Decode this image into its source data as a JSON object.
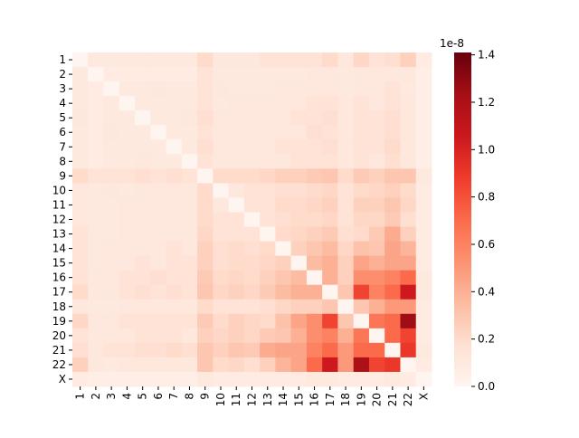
{
  "chart_data": {
    "type": "heatmap",
    "colormap": "Reds",
    "x_categories": [
      "1",
      "2",
      "3",
      "4",
      "5",
      "6",
      "7",
      "8",
      "9",
      "10",
      "11",
      "12",
      "13",
      "14",
      "15",
      "16",
      "17",
      "18",
      "19",
      "20",
      "21",
      "22",
      "X"
    ],
    "y_categories": [
      "1",
      "2",
      "3",
      "4",
      "5",
      "6",
      "7",
      "8",
      "9",
      "10",
      "11",
      "12",
      "13",
      "14",
      "15",
      "16",
      "17",
      "18",
      "19",
      "20",
      "21",
      "22",
      "X"
    ],
    "values": [
      [
        0,
        0.1,
        0.1,
        0.1,
        0.1,
        0.1,
        0.1,
        0.1,
        0.2,
        0.12,
        0.12,
        0.12,
        0.15,
        0.15,
        0.15,
        0.15,
        0.2,
        0.12,
        0.22,
        0.15,
        0.18,
        0.25,
        0.08
      ],
      [
        0.1,
        0,
        0.08,
        0.08,
        0.08,
        0.08,
        0.08,
        0.08,
        0.15,
        0.1,
        0.1,
        0.1,
        0.1,
        0.1,
        0.1,
        0.12,
        0.12,
        0.1,
        0.12,
        0.12,
        0.12,
        0.12,
        0.06
      ],
      [
        0.1,
        0.08,
        0,
        0.1,
        0.1,
        0.12,
        0.1,
        0.1,
        0.15,
        0.12,
        0.1,
        0.1,
        0.1,
        0.12,
        0.12,
        0.12,
        0.12,
        0.1,
        0.12,
        0.12,
        0.15,
        0.1,
        0.06
      ],
      [
        0.1,
        0.08,
        0.1,
        0,
        0.1,
        0.1,
        0.1,
        0.1,
        0.15,
        0.1,
        0.12,
        0.12,
        0.12,
        0.12,
        0.12,
        0.15,
        0.15,
        0.12,
        0.15,
        0.12,
        0.15,
        0.12,
        0.06
      ],
      [
        0.12,
        0.08,
        0.1,
        0.1,
        0,
        0.1,
        0.1,
        0.12,
        0.18,
        0.12,
        0.12,
        0.12,
        0.12,
        0.12,
        0.15,
        0.15,
        0.18,
        0.12,
        0.15,
        0.15,
        0.18,
        0.12,
        0.06
      ],
      [
        0.1,
        0.08,
        0.12,
        0.1,
        0.1,
        0,
        0.1,
        0.1,
        0.15,
        0.12,
        0.12,
        0.12,
        0.12,
        0.12,
        0.12,
        0.18,
        0.15,
        0.12,
        0.15,
        0.15,
        0.18,
        0.12,
        0.06
      ],
      [
        0.1,
        0.08,
        0.1,
        0.1,
        0.1,
        0.1,
        0,
        0.1,
        0.18,
        0.12,
        0.12,
        0.12,
        0.12,
        0.15,
        0.15,
        0.15,
        0.18,
        0.12,
        0.15,
        0.15,
        0.2,
        0.12,
        0.06
      ],
      [
        0.1,
        0.08,
        0.1,
        0.1,
        0.12,
        0.1,
        0.1,
        0,
        0.15,
        0.12,
        0.12,
        0.12,
        0.12,
        0.12,
        0.15,
        0.15,
        0.15,
        0.12,
        0.15,
        0.12,
        0.18,
        0.12,
        0.06
      ],
      [
        0.2,
        0.15,
        0.15,
        0.15,
        0.18,
        0.15,
        0.18,
        0.15,
        0,
        0.2,
        0.2,
        0.2,
        0.22,
        0.25,
        0.25,
        0.28,
        0.3,
        0.2,
        0.28,
        0.25,
        0.3,
        0.3,
        0.1
      ],
      [
        0.12,
        0.1,
        0.12,
        0.1,
        0.12,
        0.12,
        0.12,
        0.12,
        0.2,
        0,
        0.12,
        0.15,
        0.15,
        0.18,
        0.18,
        0.2,
        0.22,
        0.15,
        0.2,
        0.22,
        0.25,
        0.2,
        0.08
      ],
      [
        0.12,
        0.1,
        0.1,
        0.12,
        0.12,
        0.12,
        0.12,
        0.12,
        0.2,
        0.12,
        0,
        0.15,
        0.15,
        0.2,
        0.2,
        0.22,
        0.25,
        0.15,
        0.25,
        0.25,
        0.3,
        0.22,
        0.08
      ],
      [
        0.12,
        0.1,
        0.1,
        0.12,
        0.12,
        0.12,
        0.12,
        0.12,
        0.2,
        0.15,
        0.15,
        0,
        0.15,
        0.18,
        0.2,
        0.2,
        0.22,
        0.15,
        0.22,
        0.22,
        0.28,
        0.18,
        0.08
      ],
      [
        0.15,
        0.1,
        0.1,
        0.12,
        0.12,
        0.12,
        0.12,
        0.12,
        0.22,
        0.15,
        0.15,
        0.15,
        0,
        0.2,
        0.22,
        0.25,
        0.28,
        0.18,
        0.2,
        0.28,
        0.42,
        0.25,
        0.08
      ],
      [
        0.15,
        0.1,
        0.12,
        0.12,
        0.12,
        0.12,
        0.15,
        0.12,
        0.25,
        0.18,
        0.2,
        0.18,
        0.2,
        0,
        0.25,
        0.3,
        0.35,
        0.22,
        0.32,
        0.3,
        0.45,
        0.38,
        0.08
      ],
      [
        0.15,
        0.1,
        0.12,
        0.12,
        0.15,
        0.12,
        0.15,
        0.15,
        0.25,
        0.18,
        0.2,
        0.2,
        0.22,
        0.25,
        0,
        0.35,
        0.4,
        0.25,
        0.45,
        0.4,
        0.45,
        0.45,
        0.08
      ],
      [
        0.15,
        0.12,
        0.12,
        0.15,
        0.15,
        0.18,
        0.15,
        0.15,
        0.28,
        0.2,
        0.22,
        0.2,
        0.25,
        0.3,
        0.35,
        0,
        0.4,
        0.25,
        0.55,
        0.55,
        0.6,
        0.7,
        0.1
      ],
      [
        0.2,
        0.12,
        0.12,
        0.15,
        0.18,
        0.15,
        0.18,
        0.15,
        0.3,
        0.22,
        0.25,
        0.22,
        0.28,
        0.35,
        0.4,
        0.4,
        0,
        0.3,
        0.85,
        0.6,
        0.7,
        1.05,
        0.1
      ],
      [
        0.12,
        0.1,
        0.1,
        0.12,
        0.12,
        0.12,
        0.12,
        0.12,
        0.2,
        0.15,
        0.15,
        0.15,
        0.18,
        0.22,
        0.25,
        0.25,
        0.3,
        0,
        0.3,
        0.4,
        0.5,
        0.5,
        0.08
      ],
      [
        0.22,
        0.12,
        0.12,
        0.15,
        0.15,
        0.15,
        0.15,
        0.15,
        0.28,
        0.2,
        0.25,
        0.22,
        0.2,
        0.32,
        0.45,
        0.55,
        0.85,
        0.3,
        0,
        0.65,
        0.7,
        1.25,
        0.08
      ],
      [
        0.15,
        0.12,
        0.12,
        0.12,
        0.15,
        0.15,
        0.15,
        0.12,
        0.25,
        0.22,
        0.25,
        0.22,
        0.28,
        0.3,
        0.4,
        0.55,
        0.6,
        0.4,
        0.65,
        0,
        0.7,
        0.85,
        0.08
      ],
      [
        0.18,
        0.12,
        0.15,
        0.15,
        0.18,
        0.18,
        0.2,
        0.18,
        0.3,
        0.25,
        0.3,
        0.28,
        0.42,
        0.45,
        0.45,
        0.6,
        0.7,
        0.5,
        0.7,
        0.7,
        0,
        0.9,
        0.1
      ],
      [
        0.25,
        0.12,
        0.1,
        0.12,
        0.12,
        0.12,
        0.12,
        0.12,
        0.3,
        0.2,
        0.22,
        0.18,
        0.25,
        0.38,
        0.45,
        0.7,
        1.05,
        0.5,
        1.2,
        0.85,
        0.9,
        0,
        0.08
      ],
      [
        0.08,
        0.06,
        0.06,
        0.06,
        0.06,
        0.06,
        0.06,
        0.06,
        0.1,
        0.08,
        0.08,
        0.08,
        0.08,
        0.08,
        0.08,
        0.1,
        0.1,
        0.08,
        0.08,
        0.08,
        0.1,
        0.08,
        0
      ]
    ],
    "clim": [
      0,
      1.41
    ],
    "cticks": [
      {
        "value": 0,
        "label": "0.0"
      },
      {
        "value": 0.2,
        "label": "0.2"
      },
      {
        "value": 0.4,
        "label": "0.4"
      },
      {
        "value": 0.6,
        "label": "0.6"
      },
      {
        "value": 0.8,
        "label": "0.8"
      },
      {
        "value": 1.0,
        "label": "1.0"
      },
      {
        "value": 1.2,
        "label": "1.2"
      },
      {
        "value": 1.4,
        "label": "1.4"
      }
    ],
    "colorbar_offset": "1e-8"
  }
}
